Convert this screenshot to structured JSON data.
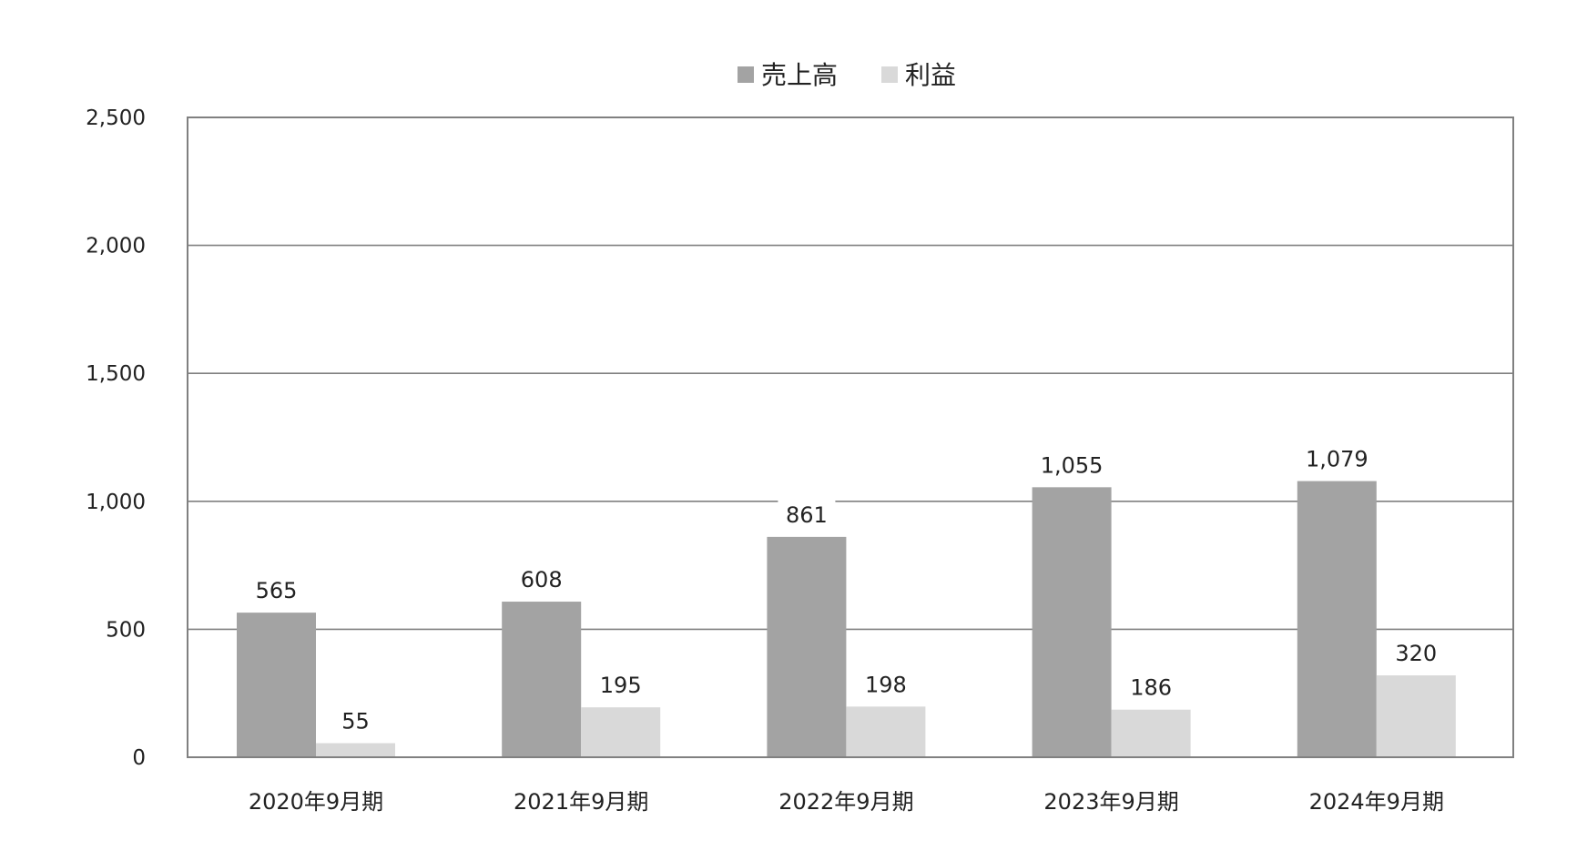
{
  "chart_data": {
    "type": "bar",
    "categories": [
      "2020年9月期",
      "2021年9月期",
      "2022年9月期",
      "2023年9月期",
      "2024年9月期"
    ],
    "series": [
      {
        "name": "売上高",
        "values": [
          565,
          608,
          861,
          1055,
          1079
        ],
        "labels": [
          "565",
          "608",
          "861",
          "1,055",
          "1,079"
        ],
        "color": "#a3a3a3"
      },
      {
        "name": "利益",
        "values": [
          55,
          195,
          198,
          186,
          320
        ],
        "labels": [
          "55",
          "195",
          "198",
          "186",
          "320"
        ],
        "color": "#d9d9d9"
      }
    ],
    "ylim": [
      0,
      2500
    ],
    "yticks": [
      0,
      500,
      1000,
      1500,
      2000,
      2500
    ],
    "ytick_labels": [
      "0",
      "500",
      "1,000",
      "1,500",
      "2,000",
      "2,500"
    ],
    "title": "",
    "xlabel": "",
    "ylabel": "",
    "grid": true,
    "legend_position": "top-center",
    "colors": {
      "gridline": "#808080",
      "frame": "#808080",
      "text": "#222222"
    }
  }
}
